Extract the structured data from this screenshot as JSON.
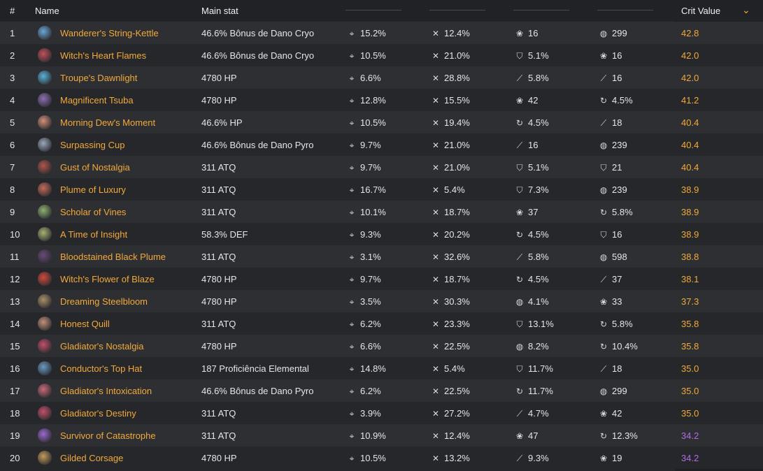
{
  "header": {
    "num": "#",
    "name": "Name",
    "main": "Main stat",
    "crit": "Crit Value"
  },
  "icons": {
    "crit_rate": "crit-rate-icon",
    "crit_dmg": "crit-dmg-icon",
    "em": "elemental-mastery-icon",
    "hp": "hp-icon",
    "def": "def-icon",
    "atk": "atk-icon",
    "er": "energy-recharge-icon"
  },
  "colors": {
    "accent": "#f2a93b",
    "purple": "#b06be6"
  },
  "rows": [
    {
      "n": "1",
      "name": "Wanderer's String-Kettle",
      "main": "46.6% Bônus de Dano Cryo",
      "s1": "15.2%",
      "s2": "12.4%",
      "s3": "16",
      "s3i": "em",
      "s4": "299",
      "s4i": "hp",
      "crit": "42.8",
      "cc": "orange",
      "ic": "#6aa6d6"
    },
    {
      "n": "2",
      "name": "Witch's Heart Flames",
      "main": "46.6% Bônus de Dano Cryo",
      "s1": "10.5%",
      "s2": "21.0%",
      "s3": "5.1%",
      "s3i": "def",
      "s4": "16",
      "s4i": "em",
      "crit": "42.0",
      "cc": "orange",
      "ic": "#c0505a"
    },
    {
      "n": "3",
      "name": "Troupe's Dawnlight",
      "main": "4780 HP",
      "s1": "6.6%",
      "s2": "28.8%",
      "s3": "5.8%",
      "s3i": "atk",
      "s4": "16",
      "s4i": "atk",
      "crit": "42.0",
      "cc": "orange",
      "ic": "#5bb0d8"
    },
    {
      "n": "4",
      "name": "Magnificent Tsuba",
      "main": "4780 HP",
      "s1": "12.8%",
      "s2": "15.5%",
      "s3": "42",
      "s3i": "em",
      "s4": "4.5%",
      "s4i": "er",
      "crit": "41.2",
      "cc": "orange",
      "ic": "#8d6fb0"
    },
    {
      "n": "5",
      "name": "Morning Dew's Moment",
      "main": "46.6% HP",
      "s1": "10.5%",
      "s2": "19.4%",
      "s3": "4.5%",
      "s3i": "er",
      "s4": "18",
      "s4i": "atk",
      "crit": "40.4",
      "cc": "orange",
      "ic": "#d0907a"
    },
    {
      "n": "6",
      "name": "Surpassing Cup",
      "main": "46.6% Bônus de Dano Pyro",
      "s1": "9.7%",
      "s2": "21.0%",
      "s3": "16",
      "s3i": "atk",
      "s4": "239",
      "s4i": "hp",
      "crit": "40.4",
      "cc": "orange",
      "ic": "#9aa6b8"
    },
    {
      "n": "7",
      "name": "Gust of Nostalgia",
      "main": "311 ATQ",
      "s1": "9.7%",
      "s2": "21.0%",
      "s3": "5.1%",
      "s3i": "def",
      "s4": "21",
      "s4i": "def",
      "crit": "40.4",
      "cc": "orange",
      "ic": "#b0564a"
    },
    {
      "n": "8",
      "name": "Plume of Luxury",
      "main": "311 ATQ",
      "s1": "16.7%",
      "s2": "5.4%",
      "s3": "7.3%",
      "s3i": "def",
      "s4": "239",
      "s4i": "hp",
      "crit": "38.9",
      "cc": "orange",
      "ic": "#c46a5a"
    },
    {
      "n": "9",
      "name": "Scholar of Vines",
      "main": "311 ATQ",
      "s1": "10.1%",
      "s2": "18.7%",
      "s3": "37",
      "s3i": "em",
      "s4": "5.8%",
      "s4i": "er",
      "crit": "38.9",
      "cc": "orange",
      "ic": "#8fb070"
    },
    {
      "n": "10",
      "name": "A Time of Insight",
      "main": "58.3% DEF",
      "s1": "9.3%",
      "s2": "20.2%",
      "s3": "4.5%",
      "s3i": "er",
      "s4": "16",
      "s4i": "def",
      "crit": "38.9",
      "cc": "orange",
      "ic": "#a8b070"
    },
    {
      "n": "11",
      "name": "Bloodstained Black Plume",
      "main": "311 ATQ",
      "s1": "3.1%",
      "s2": "32.6%",
      "s3": "5.8%",
      "s3i": "atk",
      "s4": "598",
      "s4i": "hp",
      "crit": "38.8",
      "cc": "orange",
      "ic": "#6a4a78"
    },
    {
      "n": "12",
      "name": "Witch's Flower of Blaze",
      "main": "4780 HP",
      "s1": "9.7%",
      "s2": "18.7%",
      "s3": "4.5%",
      "s3i": "er",
      "s4": "37",
      "s4i": "atk",
      "crit": "38.1",
      "cc": "orange",
      "ic": "#d04a3a"
    },
    {
      "n": "13",
      "name": "Dreaming Steelbloom",
      "main": "4780 HP",
      "s1": "3.5%",
      "s2": "30.3%",
      "s3": "4.1%",
      "s3i": "hp",
      "s4": "33",
      "s4i": "em",
      "crit": "37.3",
      "cc": "orange",
      "ic": "#a8906a"
    },
    {
      "n": "14",
      "name": "Honest Quill",
      "main": "311 ATQ",
      "s1": "6.2%",
      "s2": "23.3%",
      "s3": "13.1%",
      "s3i": "def",
      "s4": "5.8%",
      "s4i": "er",
      "crit": "35.8",
      "cc": "orange",
      "ic": "#c0907a"
    },
    {
      "n": "15",
      "name": "Gladiator's Nostalgia",
      "main": "4780 HP",
      "s1": "6.6%",
      "s2": "22.5%",
      "s3": "8.2%",
      "s3i": "hp",
      "s4": "10.4%",
      "s4i": "er",
      "crit": "35.8",
      "cc": "orange",
      "ic": "#c0506a"
    },
    {
      "n": "16",
      "name": "Conductor's Top Hat",
      "main": "187 Proficiência Elemental",
      "s1": "14.8%",
      "s2": "5.4%",
      "s3": "11.7%",
      "s3i": "def",
      "s4": "18",
      "s4i": "atk",
      "crit": "35.0",
      "cc": "orange",
      "ic": "#6a9ac0"
    },
    {
      "n": "17",
      "name": "Gladiator's Intoxication",
      "main": "46.6% Bônus de Dano Pyro",
      "s1": "6.2%",
      "s2": "22.5%",
      "s3": "11.7%",
      "s3i": "er",
      "s4": "299",
      "s4i": "hp",
      "crit": "35.0",
      "cc": "orange",
      "ic": "#c86a78"
    },
    {
      "n": "18",
      "name": "Gladiator's Destiny",
      "main": "311 ATQ",
      "s1": "3.9%",
      "s2": "27.2%",
      "s3": "4.7%",
      "s3i": "atk",
      "s4": "42",
      "s4i": "em",
      "crit": "35.0",
      "cc": "orange",
      "ic": "#c0506a"
    },
    {
      "n": "19",
      "name": "Survivor of Catastrophe",
      "main": "311 ATQ",
      "s1": "10.9%",
      "s2": "12.4%",
      "s3": "47",
      "s3i": "em",
      "s4": "12.3%",
      "s4i": "er",
      "crit": "34.2",
      "cc": "purple",
      "ic": "#9a6ad0"
    },
    {
      "n": "20",
      "name": "Gilded Corsage",
      "main": "4780 HP",
      "s1": "10.5%",
      "s2": "13.2%",
      "s3": "9.3%",
      "s3i": "atk",
      "s4": "19",
      "s4i": "em",
      "crit": "34.2",
      "cc": "purple",
      "ic": "#c09a5a"
    }
  ]
}
